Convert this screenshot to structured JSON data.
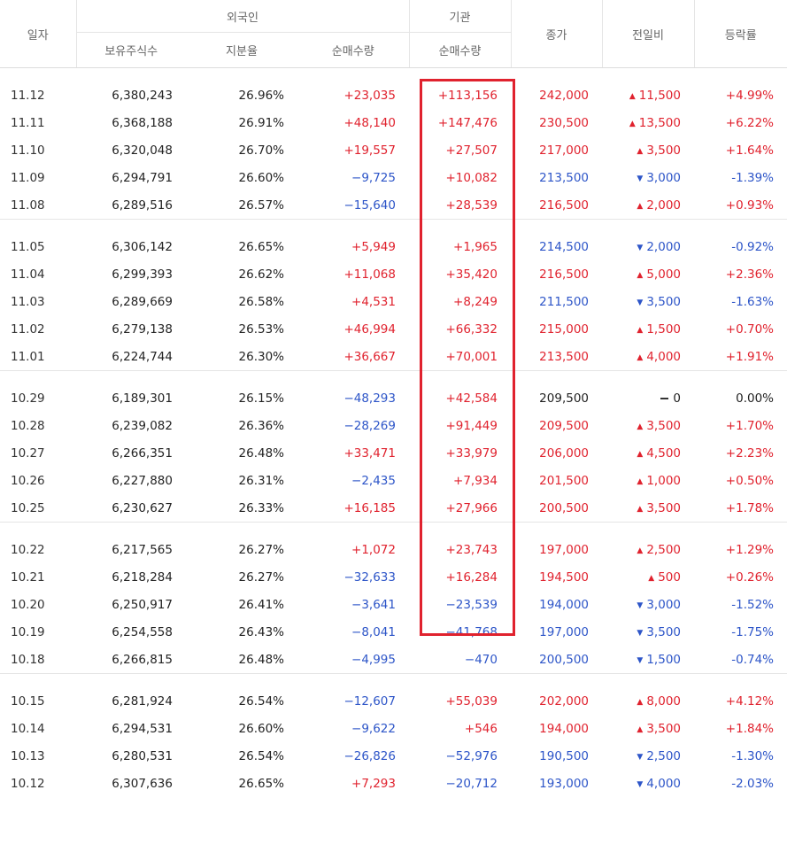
{
  "headers": {
    "date": "일자",
    "foreign": "외국인",
    "institution": "기관",
    "holdings": "보유주식수",
    "share_ratio": "지분율",
    "foreign_net": "순매수량",
    "inst_net": "순매수량",
    "close": "종가",
    "change": "전일비",
    "rate": "등락률"
  },
  "groups": [
    [
      {
        "date": "11.12",
        "holdings": "6,380,243",
        "ratio": "26.96%",
        "foreign_net": "+23,035",
        "inst_net": "+113,156",
        "close": "242,000",
        "change": "11,500",
        "dir": "up",
        "rate": "+4.99%"
      },
      {
        "date": "11.11",
        "holdings": "6,368,188",
        "ratio": "26.91%",
        "foreign_net": "+48,140",
        "inst_net": "+147,476",
        "close": "230,500",
        "change": "13,500",
        "dir": "up",
        "rate": "+6.22%"
      },
      {
        "date": "11.10",
        "holdings": "6,320,048",
        "ratio": "26.70%",
        "foreign_net": "+19,557",
        "inst_net": "+27,507",
        "close": "217,000",
        "change": "3,500",
        "dir": "up",
        "rate": "+1.64%"
      },
      {
        "date": "11.09",
        "holdings": "6,294,791",
        "ratio": "26.60%",
        "foreign_net": "−9,725",
        "inst_net": "+10,082",
        "close": "213,500",
        "change": "3,000",
        "dir": "down",
        "rate": "-1.39%"
      },
      {
        "date": "11.08",
        "holdings": "6,289,516",
        "ratio": "26.57%",
        "foreign_net": "−15,640",
        "inst_net": "+28,539",
        "close": "216,500",
        "change": "2,000",
        "dir": "up",
        "rate": "+0.93%"
      }
    ],
    [
      {
        "date": "11.05",
        "holdings": "6,306,142",
        "ratio": "26.65%",
        "foreign_net": "+5,949",
        "inst_net": "+1,965",
        "close": "214,500",
        "change": "2,000",
        "dir": "down",
        "rate": "-0.92%"
      },
      {
        "date": "11.04",
        "holdings": "6,299,393",
        "ratio": "26.62%",
        "foreign_net": "+11,068",
        "inst_net": "+35,420",
        "close": "216,500",
        "change": "5,000",
        "dir": "up",
        "rate": "+2.36%"
      },
      {
        "date": "11.03",
        "holdings": "6,289,669",
        "ratio": "26.58%",
        "foreign_net": "+4,531",
        "inst_net": "+8,249",
        "close": "211,500",
        "change": "3,500",
        "dir": "down",
        "rate": "-1.63%"
      },
      {
        "date": "11.02",
        "holdings": "6,279,138",
        "ratio": "26.53%",
        "foreign_net": "+46,994",
        "inst_net": "+66,332",
        "close": "215,000",
        "change": "1,500",
        "dir": "up",
        "rate": "+0.70%"
      },
      {
        "date": "11.01",
        "holdings": "6,224,744",
        "ratio": "26.30%",
        "foreign_net": "+36,667",
        "inst_net": "+70,001",
        "close": "213,500",
        "change": "4,000",
        "dir": "up",
        "rate": "+1.91%"
      }
    ],
    [
      {
        "date": "10.29",
        "holdings": "6,189,301",
        "ratio": "26.15%",
        "foreign_net": "−48,293",
        "inst_net": "+42,584",
        "close": "209,500",
        "change": "0",
        "dir": "flat",
        "rate": "0.00%"
      },
      {
        "date": "10.28",
        "holdings": "6,239,082",
        "ratio": "26.36%",
        "foreign_net": "−28,269",
        "inst_net": "+91,449",
        "close": "209,500",
        "change": "3,500",
        "dir": "up",
        "rate": "+1.70%"
      },
      {
        "date": "10.27",
        "holdings": "6,266,351",
        "ratio": "26.48%",
        "foreign_net": "+33,471",
        "inst_net": "+33,979",
        "close": "206,000",
        "change": "4,500",
        "dir": "up",
        "rate": "+2.23%"
      },
      {
        "date": "10.26",
        "holdings": "6,227,880",
        "ratio": "26.31%",
        "foreign_net": "−2,435",
        "inst_net": "+7,934",
        "close": "201,500",
        "change": "1,000",
        "dir": "up",
        "rate": "+0.50%"
      },
      {
        "date": "10.25",
        "holdings": "6,230,627",
        "ratio": "26.33%",
        "foreign_net": "+16,185",
        "inst_net": "+27,966",
        "close": "200,500",
        "change": "3,500",
        "dir": "up",
        "rate": "+1.78%"
      }
    ],
    [
      {
        "date": "10.22",
        "holdings": "6,217,565",
        "ratio": "26.27%",
        "foreign_net": "+1,072",
        "inst_net": "+23,743",
        "close": "197,000",
        "change": "2,500",
        "dir": "up",
        "rate": "+1.29%"
      },
      {
        "date": "10.21",
        "holdings": "6,218,284",
        "ratio": "26.27%",
        "foreign_net": "−32,633",
        "inst_net": "+16,284",
        "close": "194,500",
        "change": "500",
        "dir": "up",
        "rate": "+0.26%"
      },
      {
        "date": "10.20",
        "holdings": "6,250,917",
        "ratio": "26.41%",
        "foreign_net": "−3,641",
        "inst_net": "−23,539",
        "close": "194,000",
        "change": "3,000",
        "dir": "down",
        "rate": "-1.52%"
      },
      {
        "date": "10.19",
        "holdings": "6,254,558",
        "ratio": "26.43%",
        "foreign_net": "−8,041",
        "inst_net": "−41,768",
        "close": "197,000",
        "change": "3,500",
        "dir": "down",
        "rate": "-1.75%"
      },
      {
        "date": "10.18",
        "holdings": "6,266,815",
        "ratio": "26.48%",
        "foreign_net": "−4,995",
        "inst_net": "−470",
        "close": "200,500",
        "change": "1,500",
        "dir": "down",
        "rate": "-0.74%"
      }
    ],
    [
      {
        "date": "10.15",
        "holdings": "6,281,924",
        "ratio": "26.54%",
        "foreign_net": "−12,607",
        "inst_net": "+55,039",
        "close": "202,000",
        "change": "8,000",
        "dir": "up",
        "rate": "+4.12%"
      },
      {
        "date": "10.14",
        "holdings": "6,294,531",
        "ratio": "26.60%",
        "foreign_net": "−9,622",
        "inst_net": "+546",
        "close": "194,000",
        "change": "3,500",
        "dir": "up",
        "rate": "+1.84%"
      },
      {
        "date": "10.13",
        "holdings": "6,280,531",
        "ratio": "26.54%",
        "foreign_net": "−26,826",
        "inst_net": "−52,976",
        "close": "190,500",
        "change": "2,500",
        "dir": "down",
        "rate": "-1.30%"
      },
      {
        "date": "10.12",
        "holdings": "6,307,636",
        "ratio": "26.65%",
        "foreign_net": "+7,293",
        "inst_net": "−20,712",
        "close": "193,000",
        "change": "4,000",
        "dir": "down",
        "rate": "-2.03%"
      }
    ]
  ],
  "colors": {
    "up": "#e0222e",
    "down": "#2d55c8",
    "neutral": "#222222",
    "highlight": "#e0222e"
  },
  "icons": {
    "up": "triangle-up-icon",
    "down": "triangle-down-icon",
    "flat": "dash-icon"
  }
}
